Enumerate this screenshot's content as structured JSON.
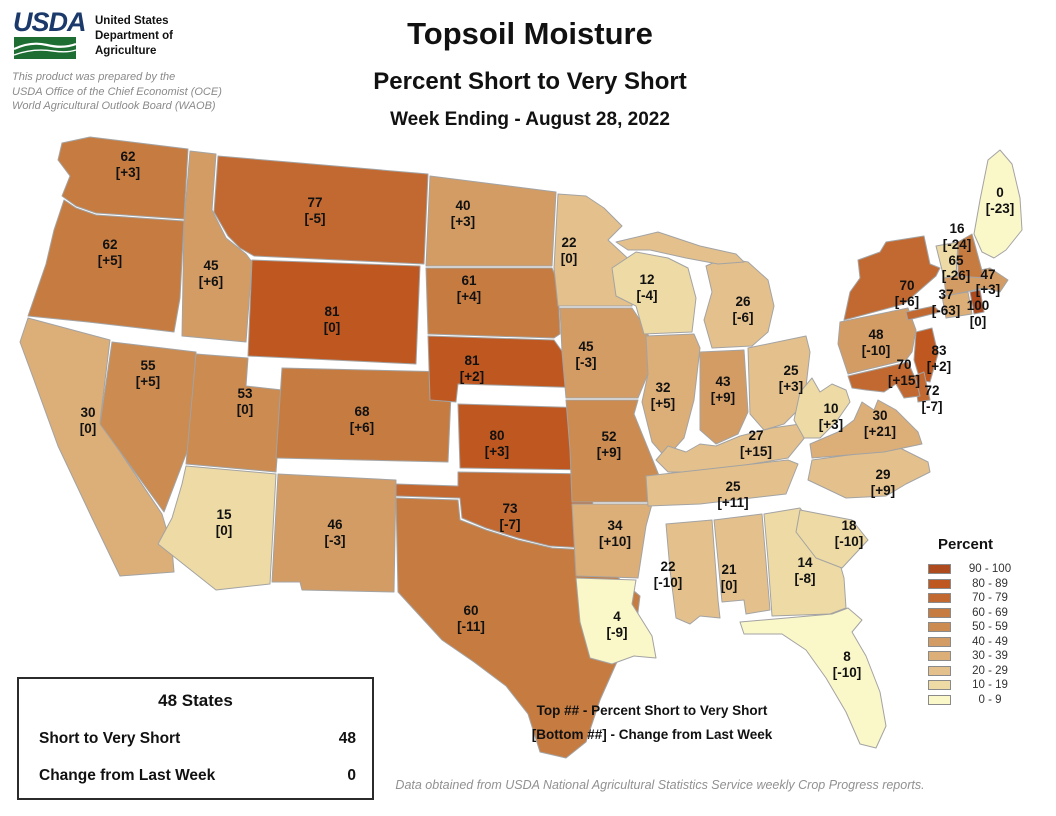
{
  "header": {
    "logo_text": "USDA",
    "org_lines": [
      "United States",
      "Department of",
      "Agriculture"
    ],
    "prepared_by": [
      "This product was prepared by the",
      "USDA Office of the Chief Economist (OCE)",
      "World Agricultural Outlook Board (WAOB)"
    ],
    "title": "Topsoil Moisture",
    "subtitle": "Percent Short to Very Short",
    "week_ending": "Week Ending - August 28, 2022"
  },
  "chart_data": {
    "type": "choropleth",
    "region": "United States (48 contiguous states)",
    "metric": "Topsoil Moisture - Percent Short to Very Short",
    "value_note": "Top ## - Percent Short to Very Short",
    "change_note": "[Bottom ##] - Change from Last Week",
    "states": [
      {
        "abbr": "WA",
        "name": "Washington",
        "value": 62,
        "change": 3
      },
      {
        "abbr": "OR",
        "name": "Oregon",
        "value": 62,
        "change": 5
      },
      {
        "abbr": "CA",
        "name": "California",
        "value": 30,
        "change": 0
      },
      {
        "abbr": "NV",
        "name": "Nevada",
        "value": 55,
        "change": 5
      },
      {
        "abbr": "ID",
        "name": "Idaho",
        "value": 45,
        "change": 6
      },
      {
        "abbr": "MT",
        "name": "Montana",
        "value": 77,
        "change": -5
      },
      {
        "abbr": "WY",
        "name": "Wyoming",
        "value": 81,
        "change": 0
      },
      {
        "abbr": "UT",
        "name": "Utah",
        "value": 53,
        "change": 0
      },
      {
        "abbr": "AZ",
        "name": "Arizona",
        "value": 15,
        "change": 0
      },
      {
        "abbr": "NM",
        "name": "New Mexico",
        "value": 46,
        "change": -3
      },
      {
        "abbr": "CO",
        "name": "Colorado",
        "value": 68,
        "change": 6
      },
      {
        "abbr": "ND",
        "name": "North Dakota",
        "value": 40,
        "change": 3
      },
      {
        "abbr": "SD",
        "name": "South Dakota",
        "value": 61,
        "change": 4
      },
      {
        "abbr": "NE",
        "name": "Nebraska",
        "value": 81,
        "change": 2
      },
      {
        "abbr": "KS",
        "name": "Kansas",
        "value": 80,
        "change": 3
      },
      {
        "abbr": "OK",
        "name": "Oklahoma",
        "value": 73,
        "change": -7
      },
      {
        "abbr": "TX",
        "name": "Texas",
        "value": 60,
        "change": -11
      },
      {
        "abbr": "MN",
        "name": "Minnesota",
        "value": 22,
        "change": 0
      },
      {
        "abbr": "IA",
        "name": "Iowa",
        "value": 45,
        "change": -3
      },
      {
        "abbr": "MO",
        "name": "Missouri",
        "value": 52,
        "change": 9
      },
      {
        "abbr": "AR",
        "name": "Arkansas",
        "value": 34,
        "change": 10
      },
      {
        "abbr": "LA",
        "name": "Louisiana",
        "value": 4,
        "change": -9
      },
      {
        "abbr": "WI",
        "name": "Wisconsin",
        "value": 12,
        "change": -4
      },
      {
        "abbr": "IL",
        "name": "Illinois",
        "value": 32,
        "change": 5
      },
      {
        "abbr": "MI",
        "name": "Michigan",
        "value": 26,
        "change": -6
      },
      {
        "abbr": "IN",
        "name": "Indiana",
        "value": 43,
        "change": 9
      },
      {
        "abbr": "OH",
        "name": "Ohio",
        "value": 25,
        "change": 3
      },
      {
        "abbr": "KY",
        "name": "Kentucky",
        "value": 27,
        "change": 15
      },
      {
        "abbr": "TN",
        "name": "Tennessee",
        "value": 25,
        "change": 11
      },
      {
        "abbr": "MS",
        "name": "Mississippi",
        "value": 22,
        "change": -10
      },
      {
        "abbr": "AL",
        "name": "Alabama",
        "value": 21,
        "change": 0
      },
      {
        "abbr": "GA",
        "name": "Georgia",
        "value": 14,
        "change": -8
      },
      {
        "abbr": "FL",
        "name": "Florida",
        "value": 8,
        "change": -10
      },
      {
        "abbr": "SC",
        "name": "South Carolina",
        "value": 18,
        "change": -10
      },
      {
        "abbr": "NC",
        "name": "North Carolina",
        "value": 29,
        "change": 9
      },
      {
        "abbr": "VA",
        "name": "Virginia",
        "value": 30,
        "change": 21
      },
      {
        "abbr": "WV",
        "name": "West Virginia",
        "value": 10,
        "change": 3
      },
      {
        "abbr": "PA",
        "name": "Pennsylvania",
        "value": 48,
        "change": -10
      },
      {
        "abbr": "NY",
        "name": "New York",
        "value": 70,
        "change": 6
      },
      {
        "abbr": "NJ",
        "name": "New Jersey",
        "value": 83,
        "change": 2
      },
      {
        "abbr": "DE",
        "name": "Delaware",
        "value": 72,
        "change": -7
      },
      {
        "abbr": "MD",
        "name": "Maryland",
        "value": 70,
        "change": 15
      },
      {
        "abbr": "CT",
        "name": "Connecticut",
        "value": 37,
        "change": -63
      },
      {
        "abbr": "RI",
        "name": "Rhode Island",
        "value": 100,
        "change": 0
      },
      {
        "abbr": "MA",
        "name": "Massachusetts",
        "value": 47,
        "change": 3
      },
      {
        "abbr": "VT",
        "name": "Vermont",
        "value": 16,
        "change": -24
      },
      {
        "abbr": "NH",
        "name": "New Hampshire",
        "value": 65,
        "change": -26
      },
      {
        "abbr": "ME",
        "name": "Maine",
        "value": 0,
        "change": -23
      }
    ]
  },
  "legend": {
    "title": "Percent",
    "bins": [
      {
        "label": "90 - 100",
        "min": 90,
        "max": 100,
        "color": "#AD4A1E"
      },
      {
        "label": "80 - 89",
        "min": 80,
        "max": 89,
        "color": "#BE5820"
      },
      {
        "label": "70 - 79",
        "min": 70,
        "max": 79,
        "color": "#C26931"
      },
      {
        "label": "60 - 69",
        "min": 60,
        "max": 69,
        "color": "#C67C41"
      },
      {
        "label": "50 - 59",
        "min": 50,
        "max": 59,
        "color": "#CB8B51"
      },
      {
        "label": "40 - 49",
        "min": 40,
        "max": 49,
        "color": "#D39C64"
      },
      {
        "label": "30 - 39",
        "min": 30,
        "max": 39,
        "color": "#DCAE78"
      },
      {
        "label": "20 - 29",
        "min": 20,
        "max": 29,
        "color": "#E4C18C"
      },
      {
        "label": "10 - 19",
        "min": 10,
        "max": 19,
        "color": "#EDDAA4"
      },
      {
        "label": "0 - 9",
        "min": 0,
        "max": 9,
        "color": "#FAF7C9"
      }
    ]
  },
  "stats_box": {
    "title": "48 States",
    "rows": [
      {
        "label": "Short to Very Short",
        "value": "48"
      },
      {
        "label": "Change from Last Week",
        "value": "0"
      }
    ]
  },
  "annotations": {
    "top_note": "Top ## - Percent Short to Very Short",
    "bottom_note": "[Bottom ##] - Change from Last Week"
  },
  "footer": "Data obtained from USDA National Agricultural Statistics Service weekly Crop Progress reports."
}
